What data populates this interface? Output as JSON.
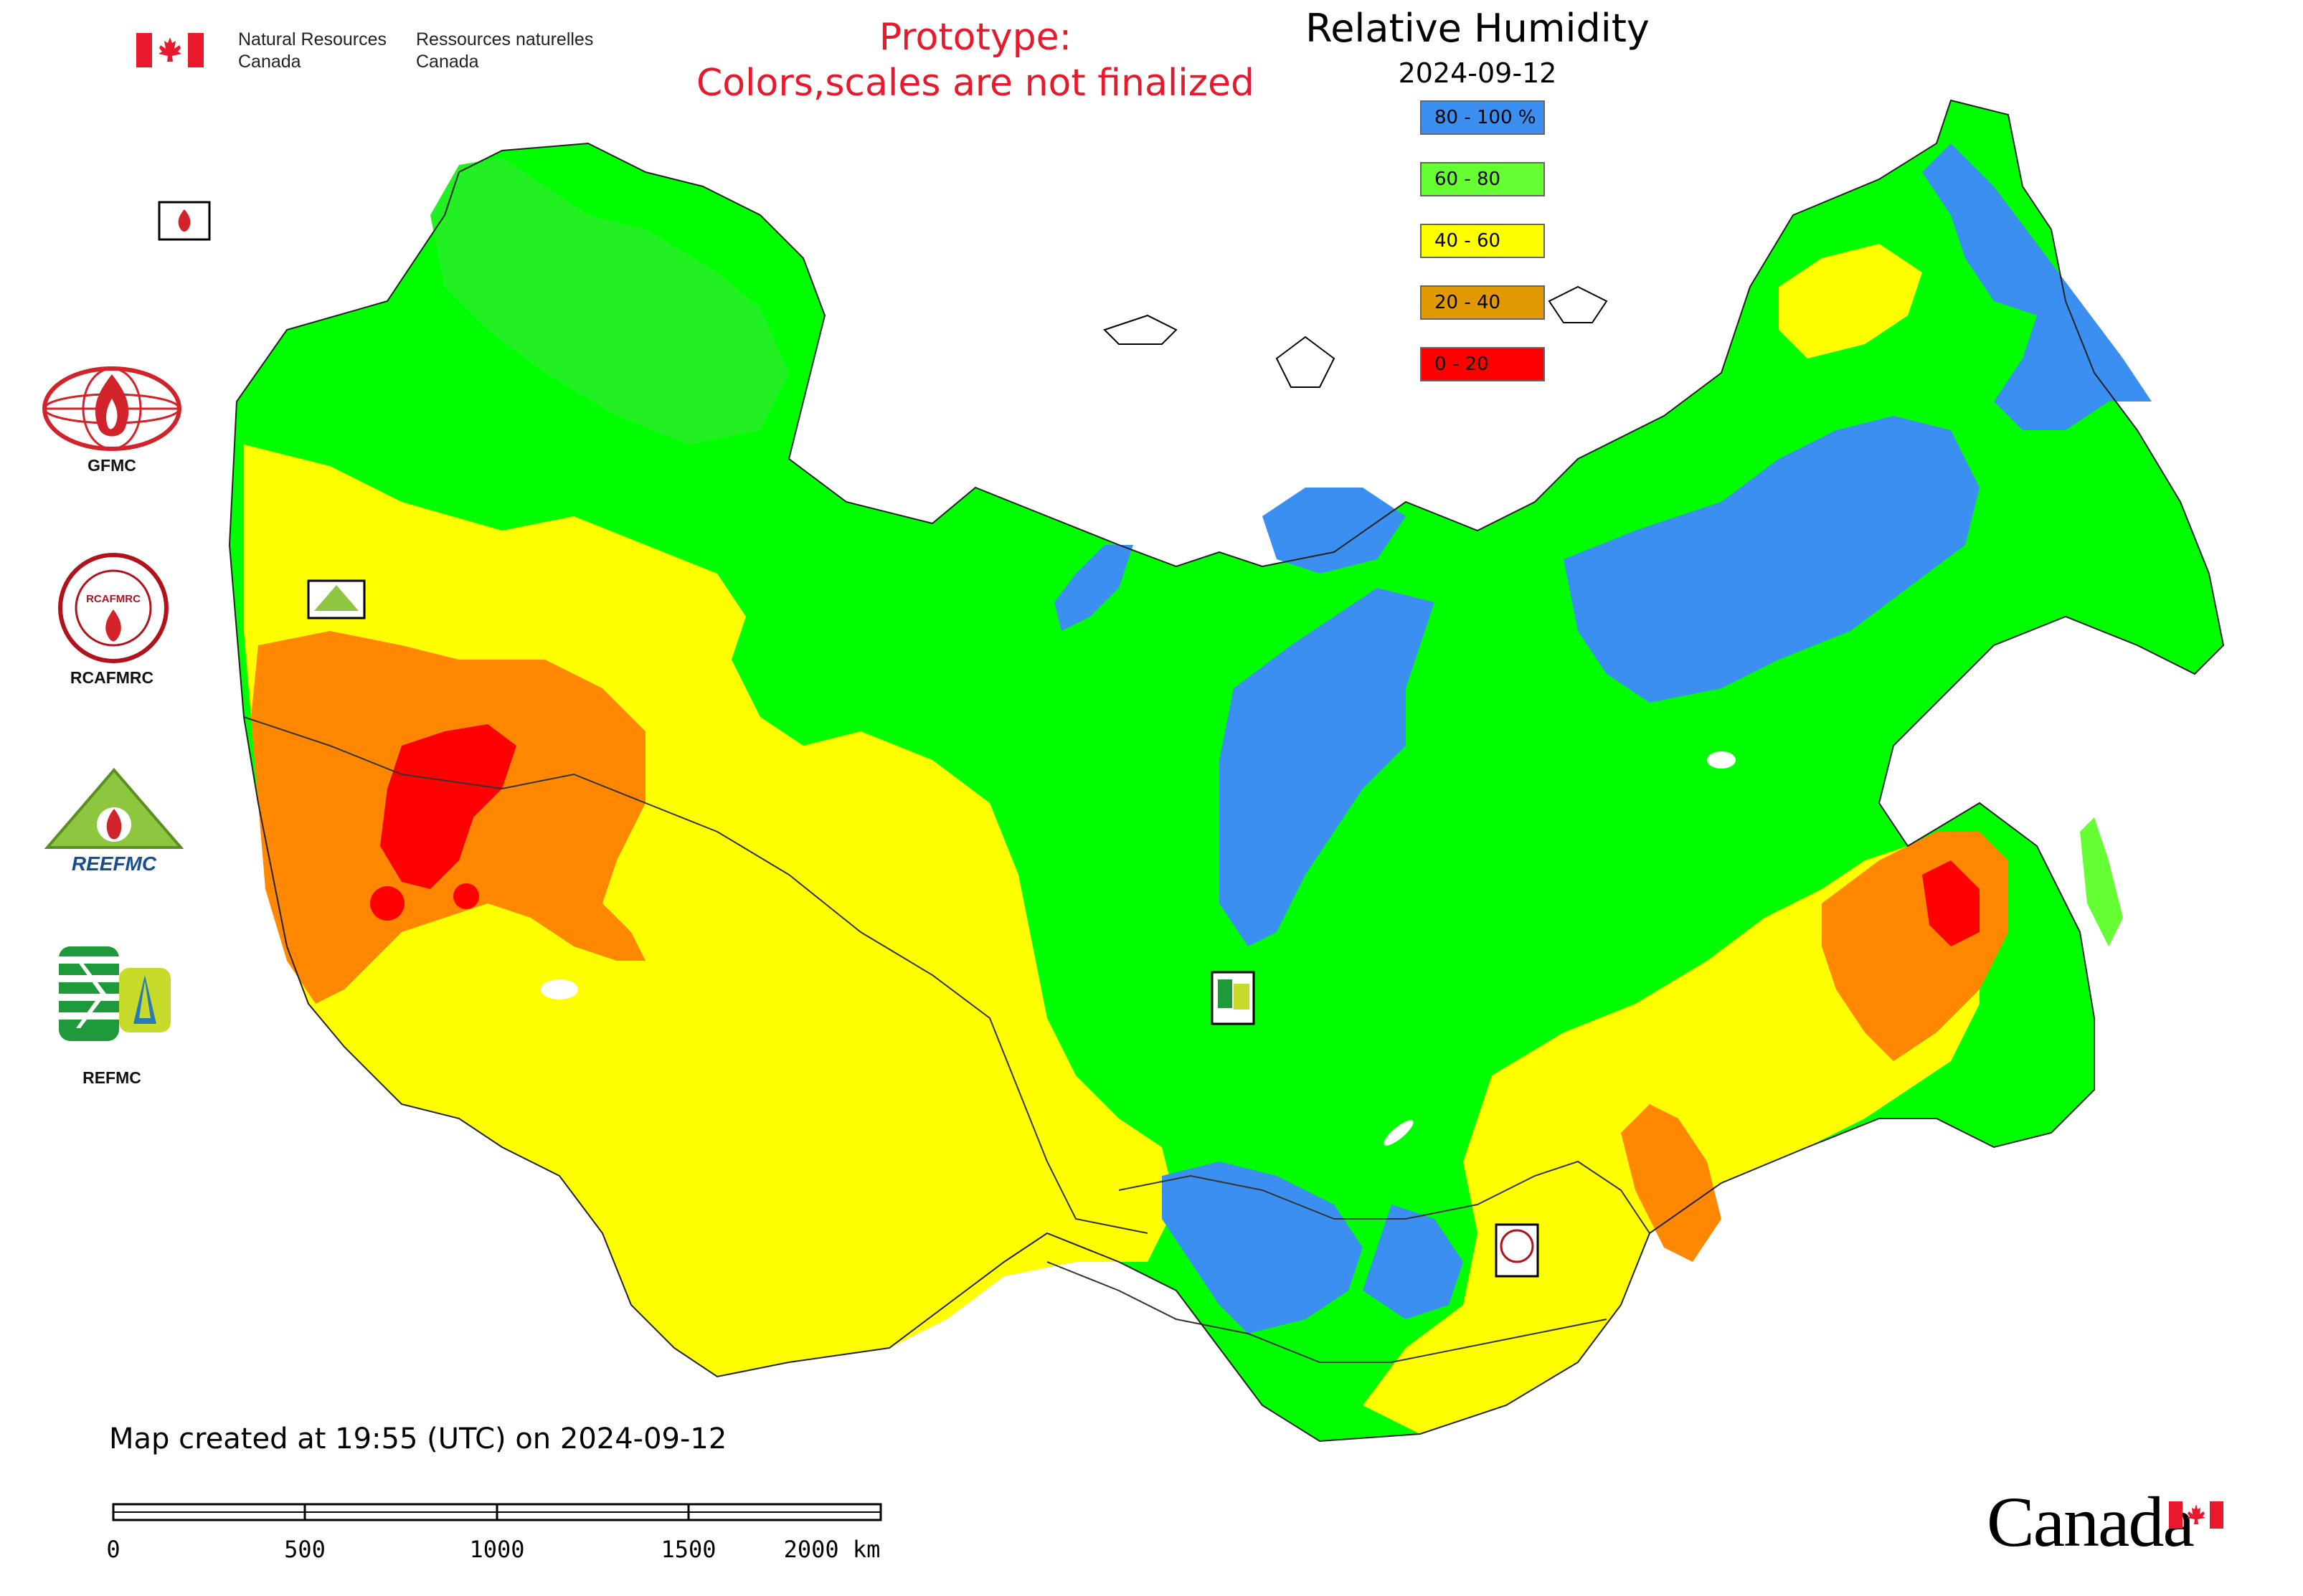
{
  "header": {
    "agency_en": [
      "Natural Resources",
      "Canada"
    ],
    "agency_fr": [
      "Ressources naturelles",
      "Canada"
    ],
    "prototype_notice": [
      "Prototype:",
      "Colors,scales are not finalized"
    ]
  },
  "legend": {
    "title": "Relative Humidity",
    "date": "2024-09-12",
    "classes": [
      {
        "label": "80 - 100 %",
        "color": "#3b8ff0"
      },
      {
        "label": "60 - 80",
        "color": "#66ff33"
      },
      {
        "label": "40 - 60",
        "color": "#ffff00"
      },
      {
        "label": "20 - 40",
        "color": "#e09a00"
      },
      {
        "label": "0 - 20",
        "color": "#ff0000"
      }
    ]
  },
  "side_logos": [
    {
      "label": "GFMC",
      "icon": "gfmc-logo-icon"
    },
    {
      "label": "RCAFMRC",
      "icon": "rcafmrc-logo-icon"
    },
    {
      "label": "",
      "icon": "reefmc-logo-icon",
      "logo_text": "REEFMC"
    },
    {
      "label": "REFMC",
      "icon": "refmc-logo-icon"
    }
  ],
  "map_markers": [
    {
      "label": "GFMC",
      "icon": "gfmc-marker-icon"
    },
    {
      "label": "REEFMC",
      "icon": "reefmc-marker-icon"
    },
    {
      "label": "REFMC",
      "icon": "refmc-marker-icon"
    },
    {
      "label": "RCAFMRC",
      "icon": "rcafmrc-marker-icon"
    }
  ],
  "footer": {
    "created": "Map created at 19:55 (UTC) on 2024-09-12",
    "scale_ticks": [
      "0",
      "500",
      "1000",
      "1500",
      "2000 km"
    ],
    "wordmark": "Canada"
  },
  "colors": {
    "blue": "#3b8ff0",
    "green": "#00ff00",
    "yellow": "#ffff00",
    "orange": "#ff8800",
    "red": "#ff0000"
  }
}
